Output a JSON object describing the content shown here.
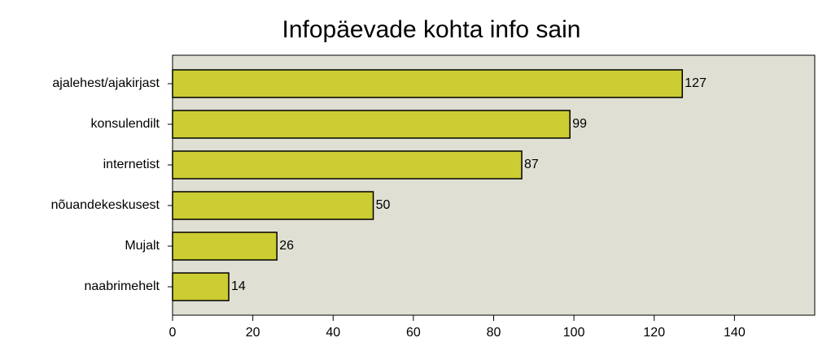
{
  "chart_data": {
    "type": "bar",
    "orientation": "horizontal",
    "title": "Infopäevade kohta info sain",
    "categories": [
      "ajalehest/ajakirjast",
      "konsulendilt",
      "internetist",
      "nõuandekeskusest",
      "Mujalt",
      "naabrimehelt"
    ],
    "values": [
      127,
      99,
      87,
      50,
      26,
      14
    ],
    "color": "#cccc33",
    "xlim": [
      0,
      160
    ],
    "xticks": [
      0,
      20,
      40,
      60,
      80,
      100,
      120,
      140
    ],
    "grid": false
  }
}
